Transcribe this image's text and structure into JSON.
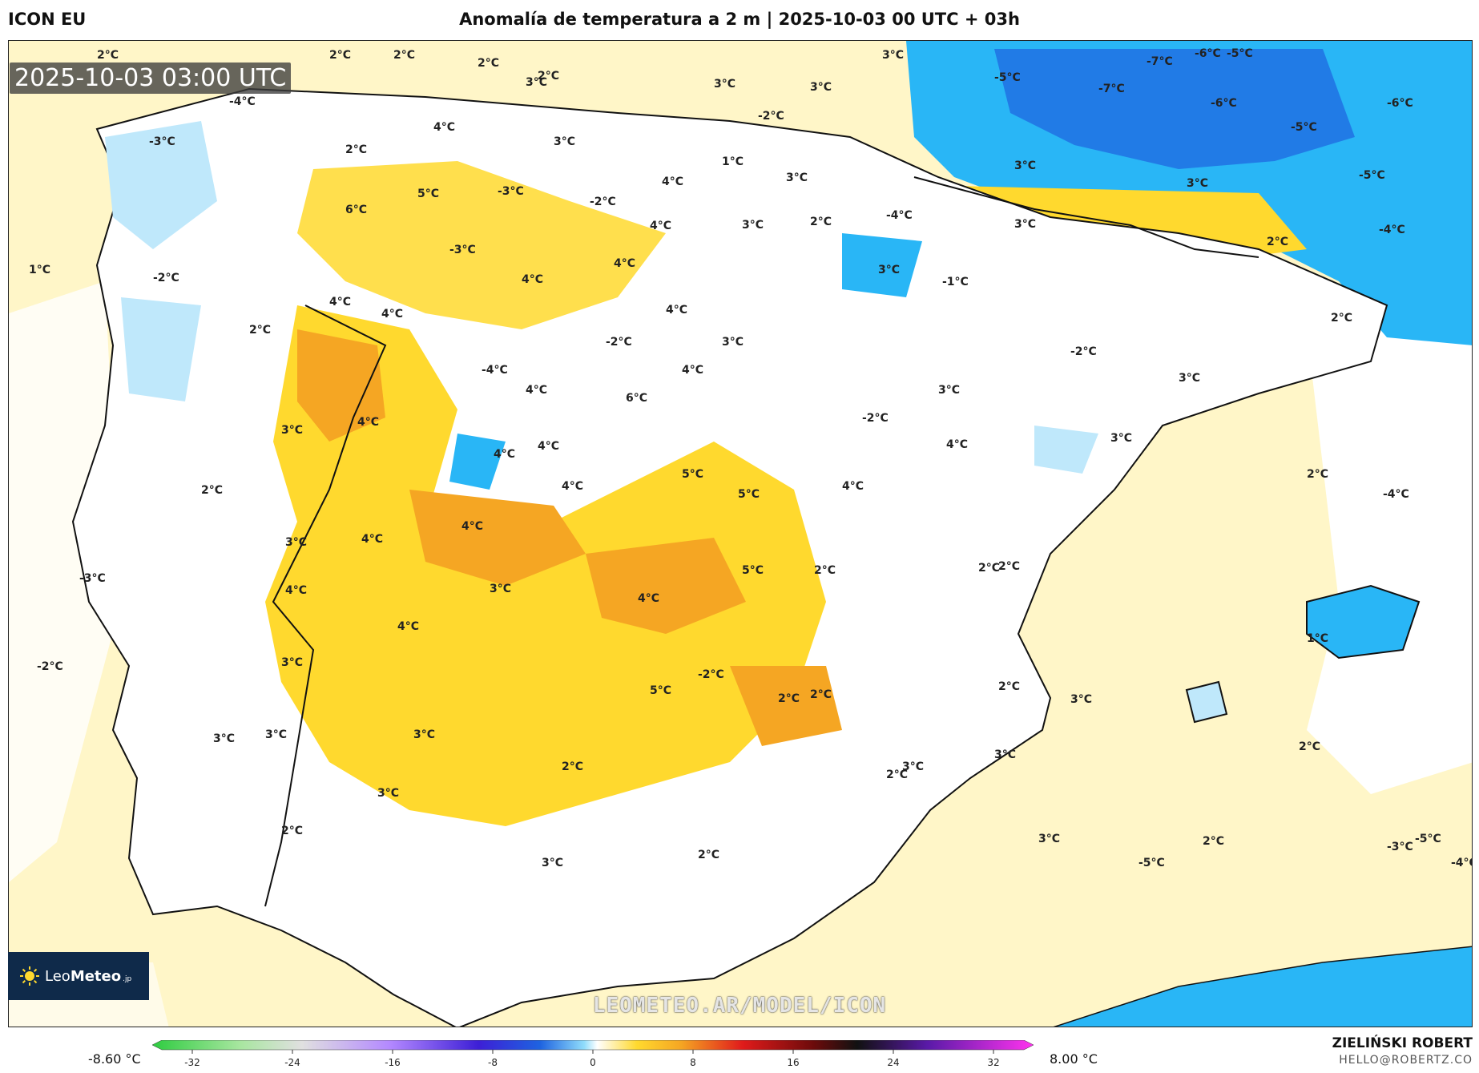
{
  "header": {
    "model": "ICON EU",
    "title": "Anomalía de temperatura a 2 m | 2025-10-03 00 UTC + 03h"
  },
  "valid_time": "2025-10-03 03:00 UTC",
  "watermark": "LEOMETEO.AR/MODEL/ICON",
  "logo": {
    "brand_a": "Leo",
    "brand_b": "Meteo",
    "tld": ".jp"
  },
  "legend": {
    "min_label": "-8.60 °C",
    "max_label": "8.00 °C",
    "ticks": [
      "-32",
      "-24",
      "-16",
      "-8",
      "0",
      "8",
      "16",
      "24",
      "32"
    ]
  },
  "credit": {
    "name": "ZIELIŃSKI ROBERT",
    "email": "HELLO@ROBERTZ.CO"
  },
  "colors": {
    "light_yellow": "#fff6c8",
    "yellow": "#ffd92e",
    "orange": "#f5a623",
    "white": "#ffffff",
    "light_blue": "#bfe8fb",
    "blue": "#29b6f6",
    "deep_blue": "#1e63e0"
  },
  "map_labels": [
    "2°C",
    "2°C",
    "2°C",
    "2°C",
    "2°C",
    "3°C",
    "3°C",
    "3°C",
    "3°C",
    "-6°C",
    "-7°C",
    "-5°C",
    "-5°C",
    "-7°C",
    "-6°C",
    "-6°C",
    "-5°C",
    "-5°C",
    "-4°C",
    "-4°C",
    "-3°C",
    "4°C",
    "2°C",
    "3°C",
    "1°C",
    "3°C",
    "-2°C",
    "4°C",
    "3°C",
    "3°C",
    "5°C",
    "6°C",
    "-3°C",
    "-2°C",
    "4°C",
    "3°C",
    "2°C",
    "-4°C",
    "3°C",
    "2°C",
    "-3°C",
    "4°C",
    "3°C",
    "-1°C",
    "1°C",
    "-2°C",
    "4°C",
    "4°C",
    "4°C",
    "2°C",
    "4°C",
    "-2°C",
    "3°C",
    "-2°C",
    "3°C",
    "2°C",
    "-4°C",
    "4°C",
    "4°C",
    "6°C",
    "3°C",
    "3°C",
    "4°C",
    "4°C",
    "4°C",
    "5°C",
    "3°C",
    "-2°C",
    "4°C",
    "5°C",
    "4°C",
    "2°C",
    "-4°C",
    "2°C",
    "4°C",
    "4°C",
    "3°C",
    "4°C",
    "5°C",
    "2°C",
    "2°C",
    "2°C",
    "-3°C",
    "4°C",
    "4°C",
    "3°C",
    "1°C",
    "-2°C",
    "3°C",
    "4°C",
    "-2°C",
    "5°C",
    "2°C",
    "2°C",
    "3°C",
    "3°C",
    "3°C",
    "3°C",
    "2°C",
    "3°C",
    "2°C",
    "2°C",
    "2°C",
    "3°C",
    "3°C",
    "3°C",
    "2°C",
    "2°C",
    "3°C",
    "2°C",
    "-4°C",
    "-5°C",
    "-3°C",
    "-5°C"
  ]
}
